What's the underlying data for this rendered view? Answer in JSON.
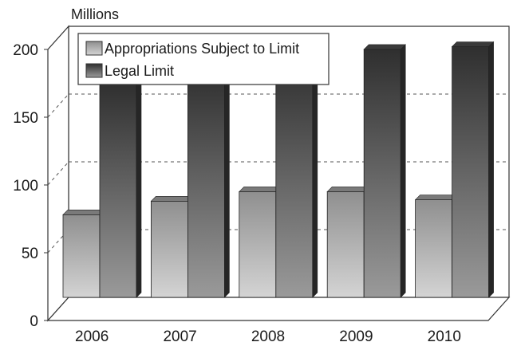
{
  "chart_data": {
    "type": "bar",
    "three_d": true,
    "title": "",
    "xlabel": "",
    "ylabel": "Millions",
    "categories": [
      "2006",
      "2007",
      "2008",
      "2009",
      "2010"
    ],
    "series": [
      {
        "name": "Appropriations Subject to Limit",
        "values": [
          61,
          71,
          78,
          78,
          72
        ],
        "color": "#a9a9a9"
      },
      {
        "name": "Legal Limit",
        "values": [
          158,
          167,
          175,
          183,
          185
        ],
        "color": "#4d4d4d"
      }
    ],
    "ylim": [
      0,
      200
    ],
    "yticks": [
      "0",
      "50",
      "100",
      "150",
      "200"
    ],
    "grid": true,
    "legend": "top-left"
  }
}
